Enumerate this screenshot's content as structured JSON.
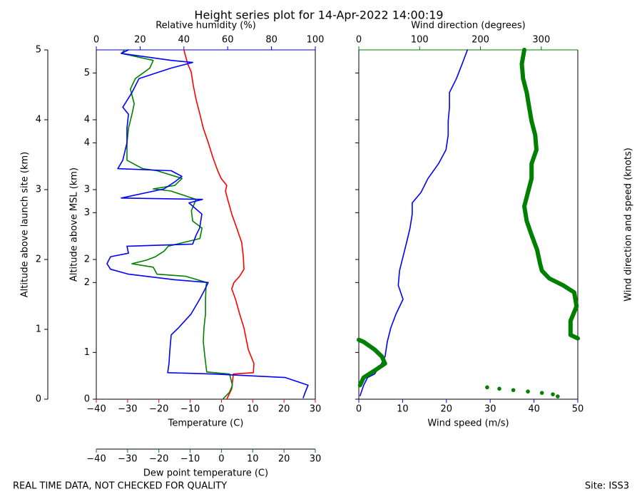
{
  "title": "Height series plot for 14-Apr-2022 14:00:19",
  "footer_left": "REAL TIME DATA, NOT CHECKED FOR QUALITY",
  "footer_right": "Site: ISS3",
  "chart_data": [
    {
      "type": "line",
      "xlabel": "Temperature (C)",
      "xcolor": "red",
      "xlim": [
        -40,
        30
      ],
      "xticks": [
        {
          "value": -40,
          "label": "−40"
        },
        {
          "value": -30,
          "label": "−30"
        },
        {
          "value": -20,
          "label": "−20"
        },
        {
          "value": -10,
          "label": "−10"
        },
        0,
        10,
        20,
        30
      ],
      "x2label": "Relative humidity (%)",
      "x2color": "blue",
      "x2lim": [
        0,
        100
      ],
      "x2ticks": [
        0,
        20,
        40,
        60,
        80,
        100
      ],
      "x3label": "Dew point temperature (C)",
      "x3color": "green",
      "x3lim": [
        -40,
        30
      ],
      "x3ticks": [
        {
          "value": -40,
          "label": "−40"
        },
        {
          "value": -30,
          "label": "−30"
        },
        {
          "value": -20,
          "label": "−20"
        },
        {
          "value": -10,
          "label": "−10"
        },
        0,
        10,
        20,
        30
      ],
      "ylabel": "Altitude above launch site (km)",
      "ylim": [
        0,
        5
      ],
      "yticks": [
        0,
        1,
        2,
        3,
        4,
        5
      ],
      "y2label": "Altitude above MSL (km)",
      "y2lim": [
        0.33,
        5.33
      ],
      "y2ticks": [
        {
          "value": 0.33,
          "label": "0"
        },
        1,
        2,
        {
          "value": 2.33,
          "label": "2"
        },
        3,
        {
          "value": 3.33,
          "label": "3"
        },
        4,
        {
          "value": 4.33,
          "label": "4"
        },
        5
      ],
      "series": [
        {
          "color": "red",
          "axis": "x",
          "marker": "line",
          "x": [
            1.7,
            3.3,
            3.8,
            10.2,
            10.4,
            8.6,
            7.2,
            5.8,
            4.5,
            3.3,
            4.0,
            5.8,
            7.2,
            7.0,
            6.5,
            4.9,
            3.3,
            2.0,
            1.3,
            1.7,
            -0.1,
            -1.2,
            -2.8,
            -4.2,
            -5.8,
            -6.9,
            -8.1,
            -9.0,
            -9.7,
            -10.8,
            -12.0
          ],
          "y": [
            0,
            0.15,
            0.36,
            0.38,
            0.51,
            0.71,
            1.02,
            1.22,
            1.43,
            1.58,
            1.67,
            1.76,
            1.86,
            2.04,
            2.24,
            2.45,
            2.65,
            2.86,
            2.98,
            3.06,
            3.16,
            3.27,
            3.47,
            3.67,
            3.88,
            4.08,
            4.29,
            4.49,
            4.69,
            4.8,
            5.0
          ]
        },
        {
          "color": "green",
          "axis": "x3",
          "marker": "line",
          "x": [
            0.4,
            2.6,
            3.5,
            2.6,
            -4.7,
            -5.3,
            -5.8,
            -5.6,
            -5.1,
            -5.1,
            -4.9,
            -4.7,
            -11.5,
            -20.6,
            -21.8,
            -28.6,
            -24.0,
            -21.1,
            -18.3,
            -17.0,
            -6.9,
            -6.2,
            -9.2,
            -9.6,
            -8.1,
            -11.5,
            -16.1,
            -21.8,
            -14.9,
            -12.6,
            -20.6,
            -25.2,
            -30.2,
            -30.2,
            -29.7,
            -28.6,
            -27.9,
            -29.1,
            -27.5,
            -22.9,
            -21.8,
            -32.0,
            -30.9
          ],
          "y": [
            0,
            0.1,
            0.2,
            0.36,
            0.39,
            0.61,
            0.82,
            1.02,
            1.22,
            1.43,
            1.63,
            1.67,
            1.76,
            1.79,
            1.89,
            1.94,
            1.99,
            2.04,
            2.12,
            2.19,
            2.3,
            2.45,
            2.55,
            2.7,
            2.86,
            2.91,
            2.98,
            3.01,
            3.06,
            3.16,
            3.27,
            3.3,
            3.42,
            3.67,
            3.88,
            4.08,
            4.23,
            4.44,
            4.59,
            4.74,
            4.85,
            4.95,
            5.0
          ]
        },
        {
          "color": "blue",
          "axis": "x2",
          "marker": "line",
          "x": [
            94.5,
            95.4,
            96.7,
            86.3,
            53.7,
            32.6,
            33.2,
            33.6,
            34.2,
            37.5,
            43.3,
            47.2,
            48.9,
            50.5,
            51.1,
            35.8,
            14.7,
            6.5,
            4.9,
            6.5,
            14.7,
            14.0,
            44.0,
            45.6,
            47.2,
            48.2,
            42.3,
            48.5,
            11.4,
            30.9,
            35.8,
            39.1,
            34.2,
            9.8,
            12.1,
            14.0,
            14.0,
            14.7,
            12.1,
            16.3,
            19.5,
            29.3,
            34.2,
            44.0,
            34.2,
            11.4,
            14.7
          ],
          "y": [
            0.02,
            0.1,
            0.2,
            0.31,
            0.36,
            0.38,
            0.51,
            0.71,
            0.92,
            1.02,
            1.22,
            1.43,
            1.53,
            1.63,
            1.67,
            1.71,
            1.79,
            1.86,
            1.94,
            2.04,
            2.09,
            2.19,
            2.22,
            2.35,
            2.45,
            2.65,
            2.81,
            2.86,
            2.88,
            3.01,
            3.11,
            3.19,
            3.27,
            3.3,
            3.42,
            3.67,
            3.88,
            4.08,
            4.18,
            4.39,
            4.59,
            4.69,
            4.74,
            4.82,
            4.85,
            4.95,
            5.0
          ]
        }
      ]
    },
    {
      "type": "line",
      "xlabel": "Wind speed (m/s)",
      "xcolor": "blue",
      "xlim": [
        0,
        50
      ],
      "xticks": [
        0,
        10,
        20,
        30,
        40,
        50
      ],
      "x2label": "Wind direction (degrees)",
      "x2color": "green",
      "x2lim": [
        0,
        360
      ],
      "x2ticks": [
        0,
        100,
        200,
        300
      ],
      "ylim": [
        0,
        5
      ],
      "barb_label": "Wind direction and speed (knots)",
      "series": [
        {
          "color": "blue",
          "axis": "x",
          "marker": "line",
          "x": [
            0.3,
            1.1,
            2.0,
            3.6,
            5.2,
            6.0,
            6.5,
            7.3,
            8.5,
            10.1,
            9.0,
            9.3,
            10.1,
            10.9,
            11.7,
            12.2,
            12.2,
            14.2,
            15.8,
            18.2,
            19.9,
            20.4,
            20.4,
            20.7,
            20.7,
            22.3,
            23.6,
            24.8
          ],
          "y": [
            0.05,
            0.2,
            0.31,
            0.36,
            0.51,
            0.61,
            0.82,
            1.02,
            1.22,
            1.43,
            1.63,
            1.84,
            2.04,
            2.24,
            2.45,
            2.65,
            2.81,
            2.96,
            3.16,
            3.37,
            3.57,
            3.78,
            3.98,
            4.18,
            4.39,
            4.59,
            4.8,
            5.0
          ]
        },
        {
          "color": "green",
          "axis": "x2",
          "marker": "thick",
          "x": [
            2,
            8,
            26,
            43,
            38,
            26,
            8,
            0,
            null,
            360,
            348,
            348,
            358,
            354,
            336,
            313,
            301,
            298,
            293,
            284,
            276,
            272,
            278,
            284,
            284,
            292,
            290,
            284,
            280,
            276,
            270,
            268,
            272
          ],
          "y": [
            0.2,
            0.31,
            0.41,
            0.51,
            0.61,
            0.71,
            0.82,
            0.85,
            null,
            0.87,
            0.92,
            1.12,
            1.33,
            1.53,
            1.63,
            1.73,
            1.84,
            1.94,
            2.14,
            2.35,
            2.55,
            2.76,
            2.96,
            3.16,
            3.37,
            3.57,
            3.78,
            3.98,
            4.18,
            4.39,
            4.59,
            4.8,
            5.0
          ]
        },
        {
          "color": "green",
          "axis": "x2",
          "marker": "dots",
          "x": [
            327,
            319,
            301,
            278,
            254,
            231,
            211
          ],
          "y": [
            0.04,
            0.07,
            0.09,
            0.11,
            0.13,
            0.15,
            0.17
          ]
        }
      ]
    }
  ]
}
